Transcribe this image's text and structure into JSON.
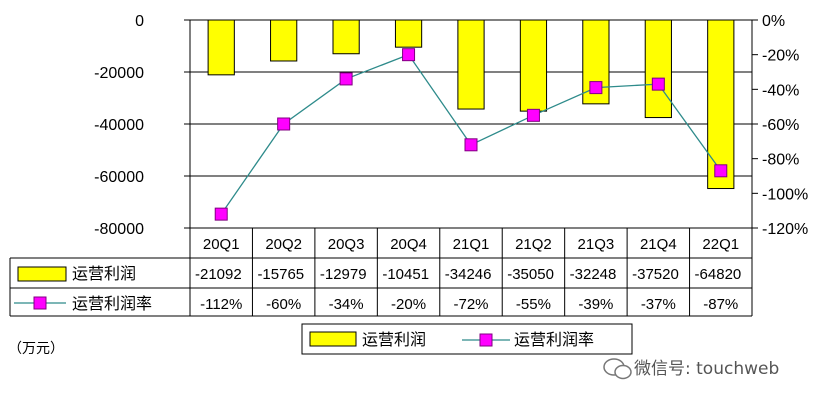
{
  "chart_data": {
    "type": "bar",
    "categories": [
      "20Q1",
      "20Q2",
      "20Q3",
      "20Q4",
      "21Q1",
      "21Q2",
      "21Q3",
      "21Q4",
      "22Q1"
    ],
    "series": [
      {
        "name": "运营利润",
        "kind": "bar",
        "axis": "left",
        "values": [
          -21092,
          -15765,
          -12979,
          -10451,
          -34246,
          -35050,
          -32248,
          -37520,
          -64820
        ],
        "table_labels": [
          "-21092",
          "-15765",
          "-12979",
          "-10451",
          "-34246",
          "-35050",
          "-32248",
          "-37520",
          "-64820"
        ]
      },
      {
        "name": "运营利润率",
        "kind": "line",
        "axis": "right",
        "values": [
          -112,
          -60,
          -34,
          -20,
          -72,
          -55,
          -39,
          -37,
          -87
        ],
        "table_labels": [
          "-112%",
          "-60%",
          "-34%",
          "-20%",
          "-72%",
          "-55%",
          "-39%",
          "-37%",
          "-87%"
        ]
      }
    ],
    "y_left": {
      "ylim": [
        -80000,
        0
      ],
      "ticks": [
        "0",
        "-20000",
        "-40000",
        "-60000",
        "-80000"
      ]
    },
    "y_right": {
      "ylim": [
        -120,
        0
      ],
      "ticks": [
        "0%",
        "-20%",
        "-40%",
        "-60%",
        "-80%",
        "-100%",
        "-120%"
      ]
    },
    "grid": true,
    "legend_position": "bottom",
    "legend": [
      "运营利润",
      "运营利润率"
    ],
    "unit_label": "（万元）",
    "colors": {
      "bar": "#FFFF00",
      "bar_edge": "#000000",
      "line": "#2E8B8B",
      "marker": "#FF00FF",
      "marker_edge": "#800080"
    }
  },
  "watermark": "微信号: touchweb",
  "watermark_icon": "wechat-icon"
}
